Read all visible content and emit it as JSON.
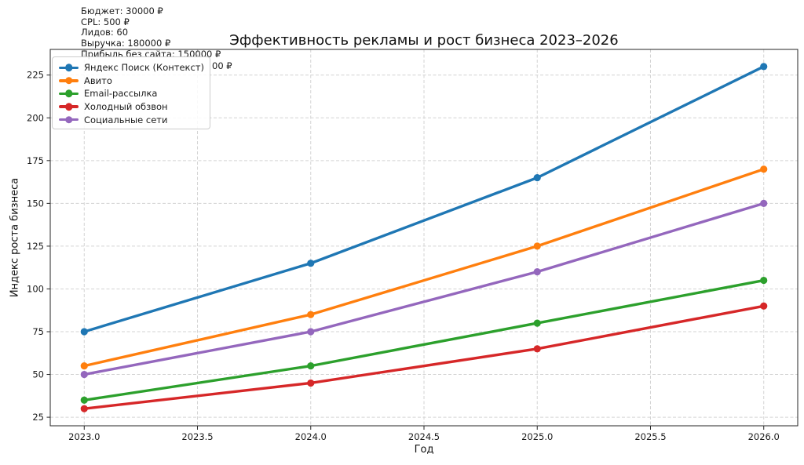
{
  "annotation": {
    "lines": [
      "Бюджет: 30000 ₽",
      "CPL: 500 ₽",
      "Лидов: 60",
      "Выручка: 180000 ₽",
      "Прибыль без сайта: 150000 ₽"
    ],
    "partial_line_visible": "00 ₽"
  },
  "chart_data": {
    "type": "line",
    "title": "Эффективность рекламы и рост бизнеса 2023–2026",
    "xlabel": "Год",
    "ylabel": "Индекс роста бизнеса",
    "x": [
      2023,
      2024,
      2025,
      2026
    ],
    "series": [
      {
        "name": "Яндекс Поиск (Контекст)",
        "color": "#1f77b4",
        "values": [
          75,
          115,
          165,
          230
        ]
      },
      {
        "name": "Авито",
        "color": "#ff7f0e",
        "values": [
          55,
          85,
          125,
          170
        ]
      },
      {
        "name": "Email-рассылка",
        "color": "#2ca02c",
        "values": [
          35,
          55,
          80,
          105
        ]
      },
      {
        "name": "Холодный обзвон",
        "color": "#d62728",
        "values": [
          30,
          45,
          65,
          90
        ]
      },
      {
        "name": "Социальные сети",
        "color": "#9467bd",
        "values": [
          50,
          75,
          110,
          150
        ]
      }
    ],
    "xlim": [
      2022.85,
      2026.15
    ],
    "ylim": [
      20,
      240
    ],
    "xticks": {
      "values": [
        2023,
        2023.5,
        2024,
        2024.5,
        2025,
        2025.5,
        2026
      ],
      "labels": [
        "2023.0",
        "2023.5",
        "2024.0",
        "2024.5",
        "2025.0",
        "2025.5",
        "2026.0"
      ]
    },
    "yticks": {
      "values": [
        25,
        50,
        75,
        100,
        125,
        150,
        175,
        200,
        225
      ],
      "labels": [
        "25",
        "50",
        "75",
        "100",
        "125",
        "150",
        "175",
        "200",
        "225"
      ]
    },
    "grid": true,
    "legend_position": "upper left",
    "marker": "o",
    "line_width": 3.4
  },
  "colors": {
    "grid": "#d3d3d3",
    "spine": "#262626",
    "tick_text": "#1a1a1a",
    "legend_border": "#cccccc"
  }
}
